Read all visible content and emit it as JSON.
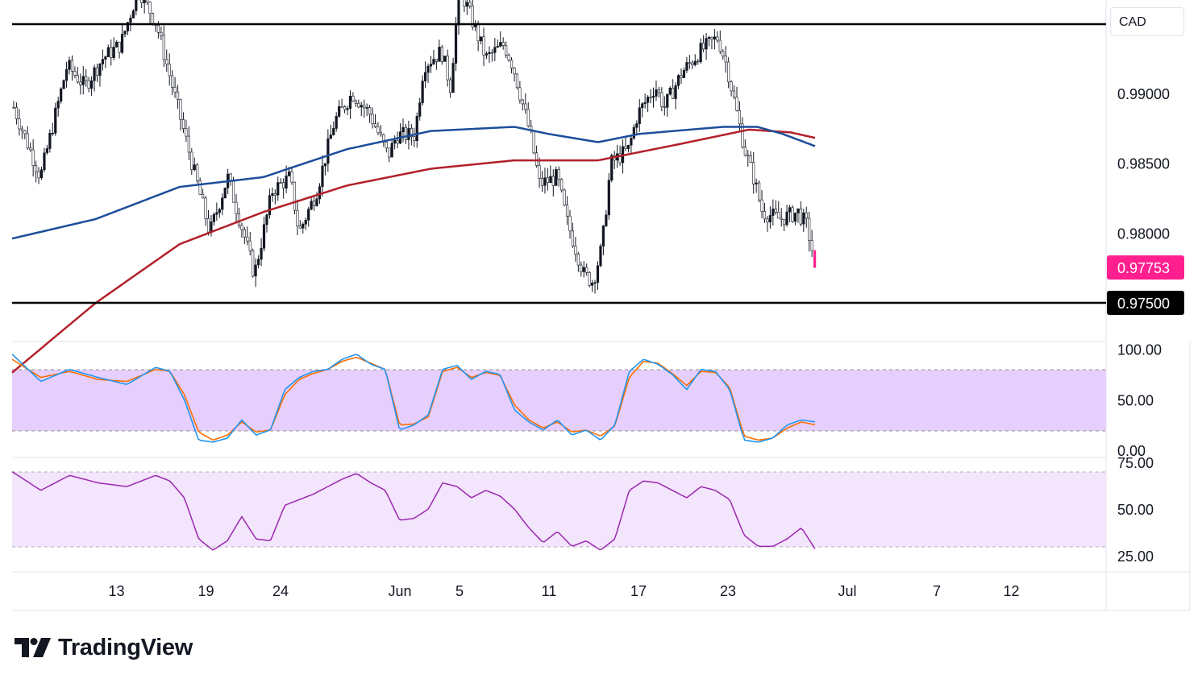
{
  "symbol": "CAD",
  "brand": "TradingView",
  "colors": {
    "up": "#089981",
    "down": "#f23645",
    "ma_fast": "#1c4e9b",
    "ma_slow": "#b2202a",
    "stoch_k": "#2196f3",
    "stoch_d": "#ff6d00",
    "rsi": "#9c27b0",
    "price_badge": "#ff1f8f",
    "level_badge": "#000000"
  },
  "chart_data": [
    {
      "type": "candlestick",
      "name": "price",
      "ylim": [
        0.9705,
        0.9985
      ],
      "y_ticks": [
        "0.99000",
        "0.98500",
        "0.98000"
      ],
      "y_tick_values": [
        0.99,
        0.985,
        0.98
      ],
      "last_price_label": "0.97753",
      "last_price": 0.97753,
      "horizontal_levels": [
        0.99495,
        0.975
      ],
      "level_label": "0.97500",
      "x_labels": [
        "13",
        "19",
        "24",
        "Jun",
        "5",
        "11",
        "17",
        "23",
        "Jul",
        "7",
        "12"
      ],
      "x_label_days": [
        7,
        13,
        18,
        26,
        30,
        36,
        42,
        48,
        56,
        62,
        67
      ],
      "anchors": [
        [
          0,
          0.989
        ],
        [
          3,
          0.984
        ],
        [
          6,
          0.992
        ],
        [
          8,
          0.9905
        ],
        [
          10,
          0.9925
        ],
        [
          12,
          0.9935
        ],
        [
          14,
          0.9975
        ],
        [
          16,
          0.995
        ],
        [
          18,
          0.99
        ],
        [
          20,
          0.985
        ],
        [
          22,
          0.98
        ],
        [
          24,
          0.984
        ],
        [
          26,
          0.9795
        ],
        [
          27,
          0.977
        ],
        [
          29,
          0.983
        ],
        [
          31,
          0.984
        ],
        [
          32,
          0.98
        ],
        [
          34,
          0.983
        ],
        [
          36,
          0.988
        ],
        [
          38,
          0.99
        ],
        [
          40,
          0.9885
        ],
        [
          42,
          0.9855
        ],
        [
          43,
          0.987
        ],
        [
          45,
          0.987
        ],
        [
          46,
          0.992
        ],
        [
          48,
          0.993
        ],
        [
          49,
          0.9905
        ],
        [
          50,
          0.9975
        ],
        [
          51,
          0.996
        ],
        [
          53,
          0.9925
        ],
        [
          55,
          0.9935
        ],
        [
          56,
          0.992
        ],
        [
          58,
          0.987
        ],
        [
          59,
          0.9835
        ],
        [
          61,
          0.984
        ],
        [
          62,
          0.981
        ],
        [
          64,
          0.977
        ],
        [
          65,
          0.9765
        ],
        [
          66,
          0.979
        ],
        [
          67,
          0.985
        ],
        [
          69,
          0.986
        ],
        [
          70,
          0.9885
        ],
        [
          72,
          0.9905
        ],
        [
          73,
          0.989
        ],
        [
          75,
          0.9915
        ],
        [
          77,
          0.993
        ],
        [
          79,
          0.994
        ],
        [
          80,
          0.992
        ],
        [
          81,
          0.989
        ],
        [
          82,
          0.986
        ],
        [
          83,
          0.984
        ],
        [
          84,
          0.9815
        ],
        [
          86,
          0.981
        ],
        [
          88,
          0.9815
        ],
        [
          89,
          0.9805
        ],
        [
          90,
          0.97753
        ]
      ],
      "ma_fast_anchors": [
        [
          0,
          0.9796
        ],
        [
          10,
          0.981
        ],
        [
          20,
          0.9833
        ],
        [
          30,
          0.984
        ],
        [
          40,
          0.986
        ],
        [
          50,
          0.9873
        ],
        [
          60,
          0.9876
        ],
        [
          64,
          0.9871
        ],
        [
          70,
          0.9865
        ],
        [
          75,
          0.9871
        ],
        [
          85,
          0.9876
        ],
        [
          89,
          0.9876
        ],
        [
          92,
          0.9871
        ],
        [
          96,
          0.9862
        ]
      ],
      "ma_slow_anchors": [
        [
          0,
          0.97
        ],
        [
          10,
          0.975
        ],
        [
          20,
          0.9792
        ],
        [
          30,
          0.9815
        ],
        [
          40,
          0.9834
        ],
        [
          50,
          0.9846
        ],
        [
          60,
          0.9852
        ],
        [
          70,
          0.9852
        ],
        [
          80,
          0.9864
        ],
        [
          88,
          0.9874
        ],
        [
          93,
          0.9872
        ],
        [
          96,
          0.9868
        ]
      ]
    },
    {
      "type": "line",
      "name": "stochastic",
      "ylim": [
        0,
        100
      ],
      "y_ticks": [
        "100.00",
        "50.00",
        "0.00"
      ],
      "y_tick_values": [
        100,
        50,
        0
      ],
      "band": [
        20,
        80
      ],
      "k_anchors": [
        [
          0,
          95
        ],
        [
          2,
          68
        ],
        [
          4,
          80
        ],
        [
          6,
          72
        ],
        [
          8,
          65
        ],
        [
          10,
          82
        ],
        [
          11,
          78
        ],
        [
          12,
          50
        ],
        [
          13,
          10
        ],
        [
          14,
          8
        ],
        [
          15,
          12
        ],
        [
          16,
          30
        ],
        [
          17,
          15
        ],
        [
          18,
          20
        ],
        [
          19,
          60
        ],
        [
          20,
          72
        ],
        [
          21,
          78
        ],
        [
          22,
          80
        ],
        [
          23,
          90
        ],
        [
          24,
          95
        ],
        [
          25,
          85
        ],
        [
          26,
          80
        ],
        [
          27,
          20
        ],
        [
          28,
          25
        ],
        [
          29,
          35
        ],
        [
          30,
          80
        ],
        [
          31,
          84
        ],
        [
          32,
          70
        ],
        [
          33,
          78
        ],
        [
          34,
          75
        ],
        [
          35,
          40
        ],
        [
          36,
          28
        ],
        [
          37,
          20
        ],
        [
          38,
          30
        ],
        [
          39,
          15
        ],
        [
          40,
          20
        ],
        [
          41,
          10
        ],
        [
          42,
          25
        ],
        [
          43,
          78
        ],
        [
          44,
          90
        ],
        [
          45,
          85
        ],
        [
          46,
          75
        ],
        [
          47,
          60
        ],
        [
          48,
          80
        ],
        [
          49,
          78
        ],
        [
          50,
          60
        ],
        [
          51,
          10
        ],
        [
          52,
          8
        ],
        [
          53,
          12
        ],
        [
          54,
          25
        ],
        [
          55,
          30
        ],
        [
          56,
          28
        ]
      ],
      "d_anchors": [
        [
          0,
          90
        ],
        [
          2,
          72
        ],
        [
          4,
          78
        ],
        [
          6,
          70
        ],
        [
          8,
          68
        ],
        [
          10,
          80
        ],
        [
          11,
          78
        ],
        [
          12,
          55
        ],
        [
          13,
          18
        ],
        [
          14,
          10
        ],
        [
          15,
          15
        ],
        [
          16,
          28
        ],
        [
          17,
          18
        ],
        [
          18,
          20
        ],
        [
          19,
          55
        ],
        [
          20,
          70
        ],
        [
          21,
          76
        ],
        [
          22,
          80
        ],
        [
          23,
          88
        ],
        [
          24,
          92
        ],
        [
          25,
          86
        ],
        [
          26,
          80
        ],
        [
          27,
          25
        ],
        [
          28,
          26
        ],
        [
          29,
          33
        ],
        [
          30,
          78
        ],
        [
          31,
          82
        ],
        [
          32,
          72
        ],
        [
          33,
          77
        ],
        [
          34,
          74
        ],
        [
          35,
          45
        ],
        [
          36,
          30
        ],
        [
          37,
          22
        ],
        [
          38,
          28
        ],
        [
          39,
          18
        ],
        [
          40,
          20
        ],
        [
          41,
          14
        ],
        [
          42,
          24
        ],
        [
          43,
          72
        ],
        [
          44,
          88
        ],
        [
          45,
          86
        ],
        [
          46,
          76
        ],
        [
          47,
          64
        ],
        [
          48,
          78
        ],
        [
          49,
          77
        ],
        [
          50,
          62
        ],
        [
          51,
          14
        ],
        [
          52,
          10
        ],
        [
          53,
          12
        ],
        [
          54,
          22
        ],
        [
          55,
          28
        ],
        [
          56,
          25
        ]
      ]
    },
    {
      "type": "line",
      "name": "rsi",
      "ylim": [
        20,
        77
      ],
      "y_ticks": [
        "75.00",
        "50.00",
        "25.00"
      ],
      "y_tick_values": [
        75,
        50,
        25
      ],
      "band": [
        30,
        70
      ],
      "anchors": [
        [
          0,
          70
        ],
        [
          2,
          60
        ],
        [
          4,
          68
        ],
        [
          6,
          64
        ],
        [
          8,
          62
        ],
        [
          10,
          68
        ],
        [
          11,
          65
        ],
        [
          12,
          56
        ],
        [
          13,
          34
        ],
        [
          14,
          28
        ],
        [
          15,
          33
        ],
        [
          16,
          46
        ],
        [
          17,
          34
        ],
        [
          18,
          33
        ],
        [
          19,
          52
        ],
        [
          20,
          55
        ],
        [
          21,
          58
        ],
        [
          22,
          62
        ],
        [
          23,
          66
        ],
        [
          24,
          69
        ],
        [
          25,
          64
        ],
        [
          26,
          60
        ],
        [
          27,
          44
        ],
        [
          28,
          45
        ],
        [
          29,
          50
        ],
        [
          30,
          64
        ],
        [
          31,
          62
        ],
        [
          32,
          56
        ],
        [
          33,
          60
        ],
        [
          34,
          57
        ],
        [
          35,
          50
        ],
        [
          36,
          40
        ],
        [
          37,
          32
        ],
        [
          38,
          38
        ],
        [
          39,
          30
        ],
        [
          40,
          33
        ],
        [
          41,
          28
        ],
        [
          42,
          34
        ],
        [
          43,
          60
        ],
        [
          44,
          65
        ],
        [
          45,
          64
        ],
        [
          46,
          60
        ],
        [
          47,
          56
        ],
        [
          48,
          62
        ],
        [
          49,
          60
        ],
        [
          50,
          55
        ],
        [
          51,
          36
        ],
        [
          52,
          30
        ],
        [
          53,
          30
        ],
        [
          54,
          34
        ],
        [
          55,
          40
        ],
        [
          56,
          28
        ]
      ]
    }
  ]
}
